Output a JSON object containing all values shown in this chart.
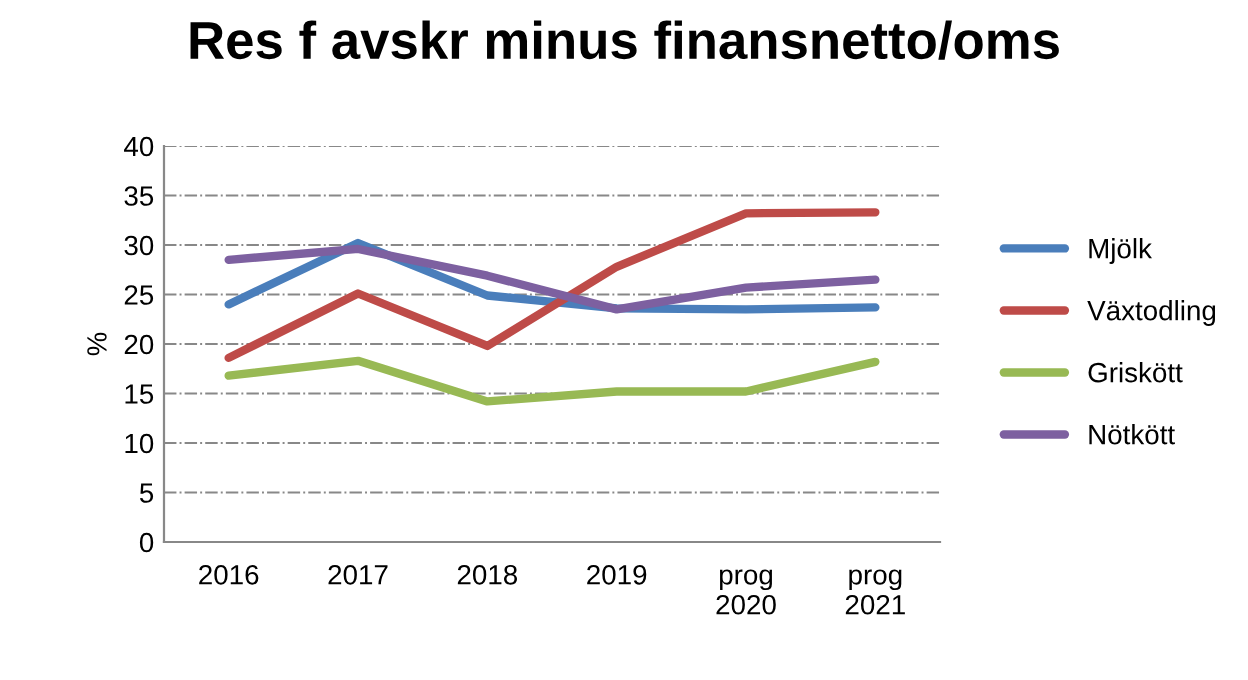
{
  "chart_data": {
    "type": "line",
    "title": "Res f avskr minus finansnetto/oms",
    "ylabel": "%",
    "categories": [
      "2016",
      "2017",
      "2018",
      "2019",
      "prog\n2020",
      "prog\n2021"
    ],
    "series": [
      {
        "name": "Mjölk",
        "color": "#4a7ebb",
        "values": [
          24.0,
          30.2,
          24.9,
          23.6,
          23.5,
          23.7
        ]
      },
      {
        "name": "Växtodling",
        "color": "#be4b48",
        "values": [
          18.6,
          25.1,
          19.8,
          27.8,
          33.2,
          33.3
        ]
      },
      {
        "name": "Griskött",
        "color": "#98b954",
        "values": [
          16.8,
          18.3,
          14.2,
          15.2,
          15.2,
          18.2
        ]
      },
      {
        "name": "Nötkött",
        "color": "#7d60a0",
        "values": [
          28.5,
          29.6,
          26.9,
          23.5,
          25.7,
          26.5
        ]
      }
    ],
    "ylim": [
      0,
      40
    ],
    "yticks": [
      0,
      5,
      10,
      15,
      20,
      25,
      30,
      35,
      40
    ],
    "grid": "y",
    "legend": "right",
    "marker": "none",
    "line_style": "solid"
  }
}
